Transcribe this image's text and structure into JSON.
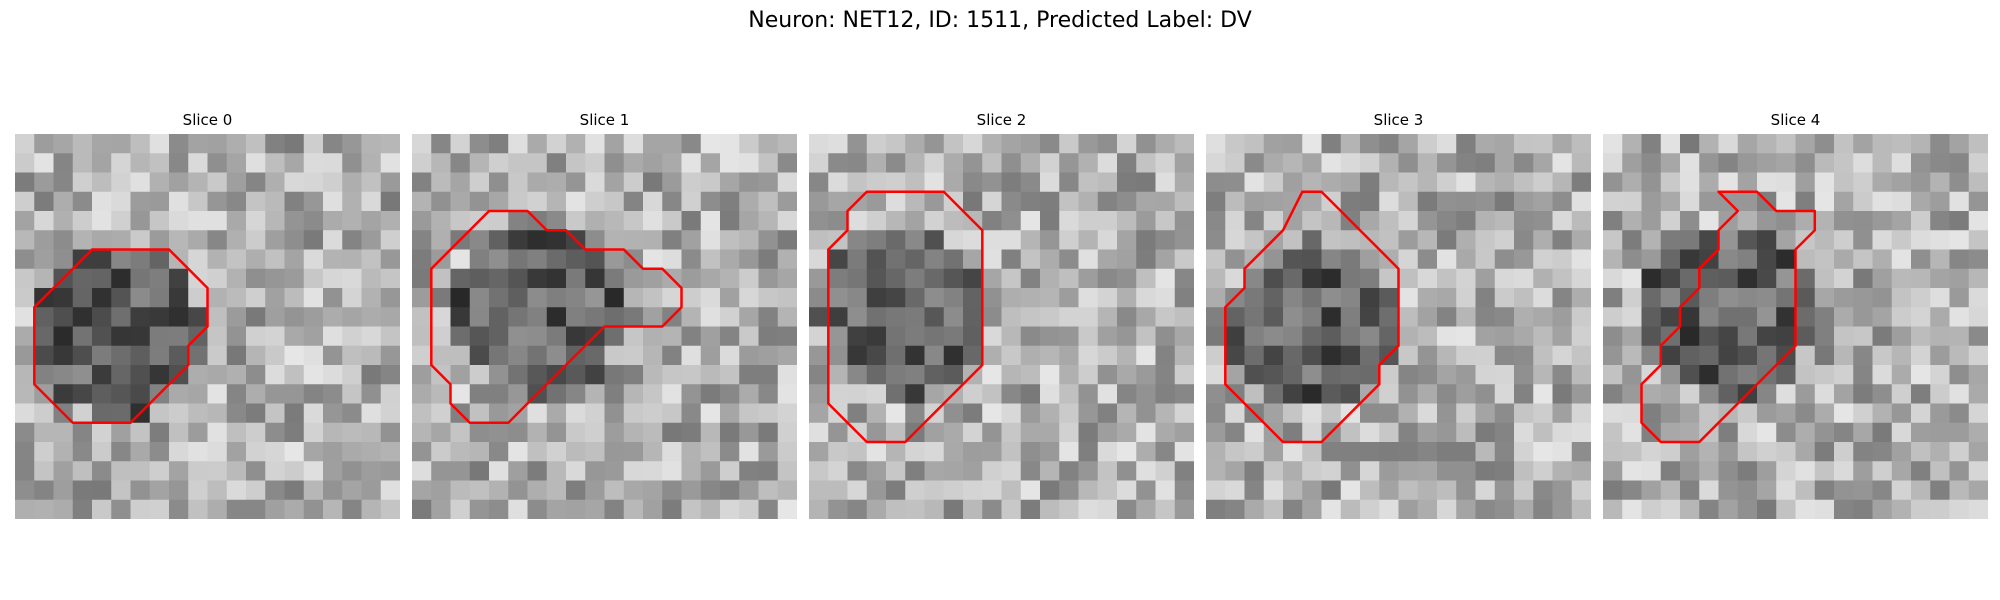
{
  "figure": {
    "title": "Neuron: NET12, ID: 1511, Predicted Label: DV"
  },
  "contour_color": "#ff0000",
  "slices": [
    {
      "label": "Slice 0",
      "contour": [
        [
          5,
          6
        ],
        [
          6,
          6
        ],
        [
          7,
          6
        ],
        [
          8,
          6
        ],
        [
          9,
          7
        ],
        [
          10,
          8
        ],
        [
          10,
          9
        ],
        [
          10,
          10
        ],
        [
          9,
          11
        ],
        [
          9,
          12
        ],
        [
          8,
          13
        ],
        [
          7,
          14
        ],
        [
          6,
          15
        ],
        [
          5,
          15
        ],
        [
          4,
          15
        ],
        [
          3,
          15
        ],
        [
          2,
          14
        ],
        [
          1,
          13
        ],
        [
          1,
          12
        ],
        [
          1,
          11
        ],
        [
          1,
          10
        ],
        [
          1,
          9
        ],
        [
          2,
          8
        ],
        [
          3,
          7
        ],
        [
          4,
          6
        ]
      ]
    },
    {
      "label": "Slice 1",
      "contour": [
        [
          4,
          4
        ],
        [
          5,
          4
        ],
        [
          6,
          4
        ],
        [
          7,
          5
        ],
        [
          8,
          5
        ],
        [
          9,
          6
        ],
        [
          10,
          6
        ],
        [
          11,
          6
        ],
        [
          12,
          7
        ],
        [
          13,
          7
        ],
        [
          14,
          8
        ],
        [
          14,
          9
        ],
        [
          13,
          10
        ],
        [
          12,
          10
        ],
        [
          11,
          10
        ],
        [
          10,
          10
        ],
        [
          9,
          11
        ],
        [
          8,
          12
        ],
        [
          7,
          13
        ],
        [
          6,
          14
        ],
        [
          5,
          15
        ],
        [
          4,
          15
        ],
        [
          3,
          15
        ],
        [
          2,
          14
        ],
        [
          2,
          13
        ],
        [
          1,
          12
        ],
        [
          1,
          11
        ],
        [
          1,
          10
        ],
        [
          1,
          9
        ],
        [
          1,
          8
        ],
        [
          1,
          7
        ],
        [
          2,
          6
        ],
        [
          3,
          5
        ]
      ]
    },
    {
      "label": "Slice 2",
      "contour": [
        [
          3,
          3
        ],
        [
          4,
          3
        ],
        [
          5,
          3
        ],
        [
          6,
          3
        ],
        [
          7,
          3
        ],
        [
          8,
          4
        ],
        [
          9,
          5
        ],
        [
          9,
          6
        ],
        [
          9,
          7
        ],
        [
          9,
          8
        ],
        [
          9,
          9
        ],
        [
          9,
          10
        ],
        [
          9,
          11
        ],
        [
          9,
          12
        ],
        [
          8,
          13
        ],
        [
          7,
          14
        ],
        [
          6,
          15
        ],
        [
          5,
          16
        ],
        [
          4,
          16
        ],
        [
          3,
          16
        ],
        [
          2,
          15
        ],
        [
          1,
          14
        ],
        [
          1,
          13
        ],
        [
          1,
          12
        ],
        [
          1,
          11
        ],
        [
          1,
          10
        ],
        [
          1,
          9
        ],
        [
          1,
          8
        ],
        [
          1,
          7
        ],
        [
          1,
          6
        ],
        [
          2,
          5
        ],
        [
          2,
          4
        ]
      ]
    },
    {
      "label": "Slice 3",
      "contour": [
        [
          5,
          3
        ],
        [
          6,
          3
        ],
        [
          7,
          4
        ],
        [
          8,
          5
        ],
        [
          9,
          6
        ],
        [
          10,
          7
        ],
        [
          10,
          8
        ],
        [
          10,
          9
        ],
        [
          10,
          10
        ],
        [
          10,
          11
        ],
        [
          9,
          12
        ],
        [
          9,
          13
        ],
        [
          8,
          14
        ],
        [
          7,
          15
        ],
        [
          6,
          16
        ],
        [
          5,
          16
        ],
        [
          4,
          16
        ],
        [
          3,
          15
        ],
        [
          2,
          14
        ],
        [
          1,
          13
        ],
        [
          1,
          12
        ],
        [
          1,
          11
        ],
        [
          1,
          10
        ],
        [
          1,
          9
        ],
        [
          2,
          8
        ],
        [
          2,
          7
        ],
        [
          3,
          6
        ],
        [
          4,
          5
        ]
      ]
    },
    {
      "label": "Slice 4",
      "contour": [
        [
          6,
          3
        ],
        [
          7,
          3
        ],
        [
          8,
          3
        ],
        [
          9,
          4
        ],
        [
          10,
          4
        ],
        [
          11,
          4
        ],
        [
          11,
          5
        ],
        [
          10,
          6
        ],
        [
          10,
          7
        ],
        [
          10,
          8
        ],
        [
          10,
          9
        ],
        [
          10,
          10
        ],
        [
          10,
          11
        ],
        [
          9,
          12
        ],
        [
          8,
          13
        ],
        [
          7,
          14
        ],
        [
          6,
          15
        ],
        [
          5,
          16
        ],
        [
          4,
          16
        ],
        [
          3,
          16
        ],
        [
          2,
          15
        ],
        [
          2,
          14
        ],
        [
          2,
          13
        ],
        [
          3,
          12
        ],
        [
          3,
          11
        ],
        [
          4,
          10
        ],
        [
          4,
          9
        ],
        [
          5,
          8
        ],
        [
          5,
          7
        ],
        [
          6,
          6
        ],
        [
          6,
          5
        ],
        [
          7,
          4
        ]
      ]
    }
  ]
}
